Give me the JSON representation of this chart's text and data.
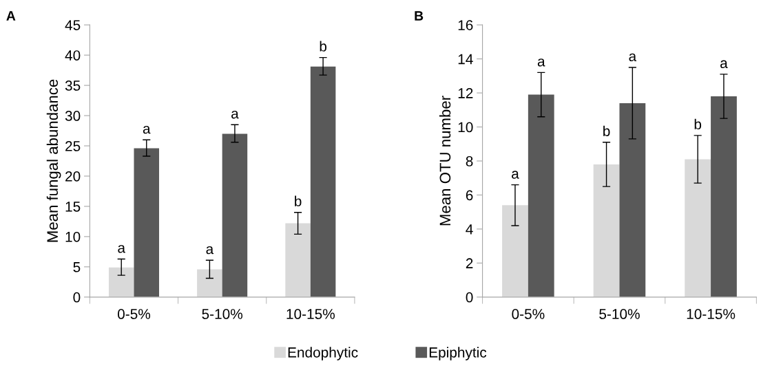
{
  "chart_data": [
    {
      "type": "bar",
      "ylabel": "Mean fungal abundance",
      "categories": [
        "0-5%",
        "5-10%",
        "10-15%"
      ],
      "ylim": [
        0,
        45
      ],
      "yticks": [
        0,
        5,
        10,
        15,
        20,
        25,
        30,
        35,
        40,
        45
      ],
      "grid": false,
      "legend": "bottom",
      "series": [
        {
          "name": "Endophytic",
          "color": "#d9d9d9",
          "values": [
            4.9,
            4.6,
            12.2
          ],
          "errors": [
            [
              3.6,
              6.3
            ],
            [
              3.1,
              6.1
            ],
            [
              10.4,
              14.0
            ]
          ],
          "value_labels": [
            "a",
            "a",
            "b"
          ]
        },
        {
          "name": "Epiphytic",
          "color": "#595959",
          "values": [
            24.6,
            27.0,
            38.1
          ],
          "errors": [
            [
              23.3,
              26.0
            ],
            [
              25.6,
              28.5
            ],
            [
              36.7,
              39.6
            ]
          ],
          "value_labels": [
            "a",
            "a",
            "b"
          ]
        }
      ],
      "annotations": [
        "A"
      ]
    },
    {
      "type": "bar",
      "ylabel": "Mean OTU number",
      "categories": [
        "0-5%",
        "5-10%",
        "10-15%"
      ],
      "ylim": [
        0,
        16
      ],
      "yticks": [
        0,
        2,
        4,
        6,
        8,
        10,
        12,
        14,
        16
      ],
      "grid": false,
      "series": [
        {
          "color": "#d9d9d9",
          "values": [
            5.4,
            7.8,
            8.1
          ],
          "errors": [
            [
              4.2,
              6.6
            ],
            [
              6.5,
              9.1
            ],
            [
              6.7,
              9.5
            ]
          ],
          "value_labels": [
            "a",
            "b",
            "b"
          ]
        },
        {
          "color": "#595959",
          "values": [
            11.9,
            11.4,
            11.8
          ],
          "errors": [
            [
              10.6,
              13.2
            ],
            [
              9.3,
              13.5
            ],
            [
              10.5,
              13.1
            ]
          ],
          "value_labels": [
            "a",
            "a",
            "a"
          ]
        }
      ],
      "annotations": [
        "B"
      ]
    }
  ]
}
